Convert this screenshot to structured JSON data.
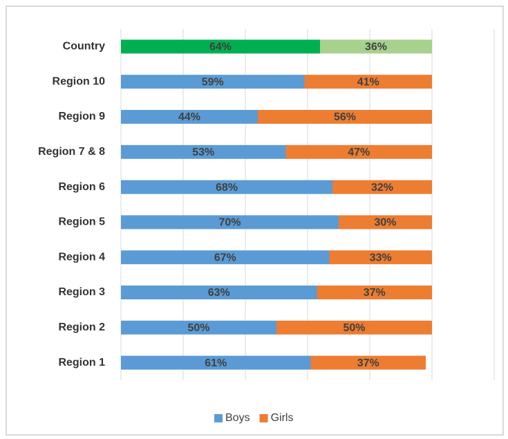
{
  "chart_data": {
    "type": "stacked_bar_horizontal",
    "categories": [
      "Country",
      "Region 10",
      "Region 9",
      "Region 7 & 8",
      "Region 6",
      "Region 5",
      "Region 4",
      "Region 3",
      "Region 2",
      "Region 1"
    ],
    "series": [
      {
        "name": "Boys",
        "color": "#5b9bd5",
        "colors": [
          "#00b050",
          "#5b9bd5",
          "#5b9bd5",
          "#5b9bd5",
          "#5b9bd5",
          "#5b9bd5",
          "#5b9bd5",
          "#5b9bd5",
          "#5b9bd5",
          "#5b9bd5"
        ],
        "values": [
          64,
          59,
          44,
          53,
          68,
          70,
          67,
          63,
          50,
          61
        ],
        "value_labels": [
          "64%",
          "59%",
          "44%",
          "53%",
          "68%",
          "70%",
          "67%",
          "63%",
          "50%",
          "61%"
        ]
      },
      {
        "name": "Girls",
        "color": "#ed7d31",
        "colors": [
          "#a9d18e",
          "#ed7d31",
          "#ed7d31",
          "#ed7d31",
          "#ed7d31",
          "#ed7d31",
          "#ed7d31",
          "#ed7d31",
          "#ed7d31",
          "#ed7d31"
        ],
        "values": [
          36,
          41,
          56,
          47,
          32,
          30,
          33,
          37,
          50,
          37
        ],
        "value_labels": [
          "36%",
          "41%",
          "56%",
          "47%",
          "32%",
          "30%",
          "33%",
          "37%",
          "50%",
          "37%"
        ]
      }
    ],
    "xlim": [
      0,
      120
    ],
    "xticks": [
      0,
      20,
      40,
      60,
      80,
      100,
      120
    ],
    "grid": true,
    "legend": "bottom"
  }
}
